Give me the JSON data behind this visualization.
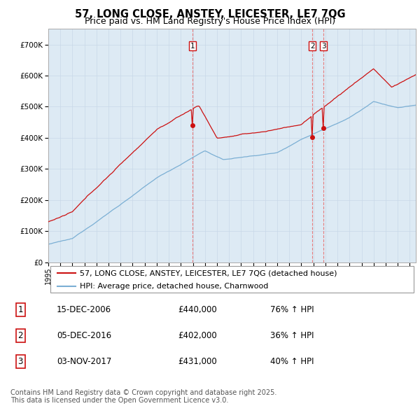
{
  "title": "57, LONG CLOSE, ANSTEY, LEICESTER, LE7 7QG",
  "subtitle": "Price paid vs. HM Land Registry's House Price Index (HPI)",
  "ylim": [
    0,
    750000
  ],
  "yticks": [
    0,
    100000,
    200000,
    300000,
    400000,
    500000,
    600000,
    700000
  ],
  "x_start_year": 1995,
  "x_end_year": 2025,
  "hpi_color": "#7bafd4",
  "price_color": "#cc1111",
  "vline_color": "#e87070",
  "grid_color": "#c8d8e8",
  "bg_chart_color": "#ddeaf4",
  "background_color": "#ffffff",
  "legend_label_price": "57, LONG CLOSE, ANSTEY, LEICESTER, LE7 7QG (detached house)",
  "legend_label_hpi": "HPI: Average price, detached house, Charnwood",
  "transactions": [
    {
      "date": 2006.96,
      "price": 440000,
      "label": "1"
    },
    {
      "date": 2016.92,
      "price": 402000,
      "label": "2"
    },
    {
      "date": 2017.84,
      "price": 431000,
      "label": "3"
    }
  ],
  "table_rows": [
    {
      "num": "1",
      "date": "15-DEC-2006",
      "price": "£440,000",
      "hpi": "76% ↑ HPI"
    },
    {
      "num": "2",
      "date": "05-DEC-2016",
      "price": "£402,000",
      "hpi": "36% ↑ HPI"
    },
    {
      "num": "3",
      "date": "03-NOV-2017",
      "price": "£431,000",
      "hpi": "40% ↑ HPI"
    }
  ],
  "footnote": "Contains HM Land Registry data © Crown copyright and database right 2025.\nThis data is licensed under the Open Government Licence v3.0.",
  "title_fontsize": 10.5,
  "subtitle_fontsize": 9,
  "tick_fontsize": 7.5,
  "legend_fontsize": 8,
  "table_fontsize": 8.5,
  "footnote_fontsize": 7
}
